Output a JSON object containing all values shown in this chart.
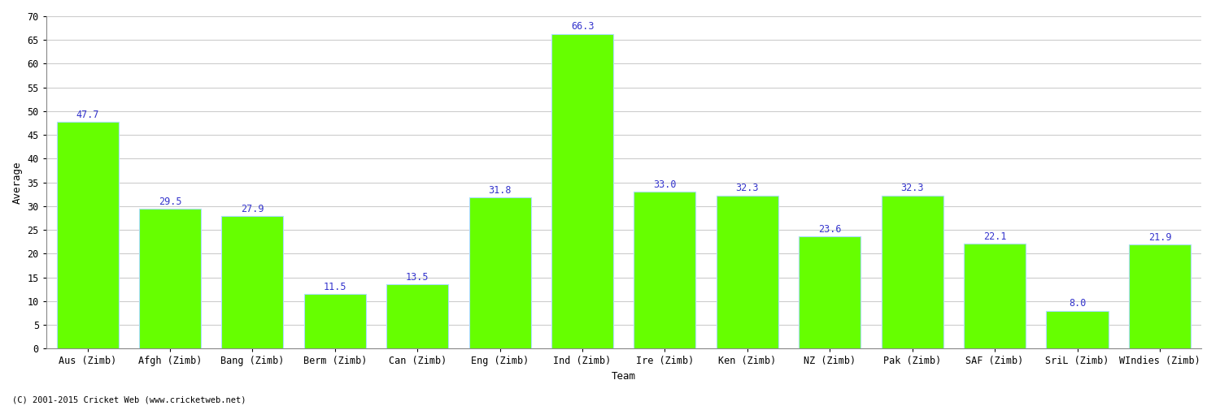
{
  "categories": [
    "Aus (Zimb)",
    "Afgh (Zimb)",
    "Bang (Zimb)",
    "Berm (Zimb)",
    "Can (Zimb)",
    "Eng (Zimb)",
    "Ind (Zimb)",
    "Ire (Zimb)",
    "Ken (Zimb)",
    "NZ (Zimb)",
    "Pak (Zimb)",
    "SAF (Zimb)",
    "SriL (Zimb)",
    "WIndies (Zimb)"
  ],
  "values": [
    47.7,
    29.5,
    27.9,
    11.5,
    13.5,
    31.8,
    66.3,
    33.0,
    32.3,
    23.6,
    32.3,
    22.1,
    8.0,
    21.9
  ],
  "bar_color": "#66ff00",
  "bar_edge_color": "#aaddff",
  "label_color": "#3333cc",
  "ylabel": "Average",
  "xlabel": "Team",
  "ylim": [
    0,
    70
  ],
  "yticks": [
    0,
    5,
    10,
    15,
    20,
    25,
    30,
    35,
    40,
    45,
    50,
    55,
    60,
    65,
    70
  ],
  "background_color": "#ffffff",
  "grid_color": "#cccccc",
  "footer": "(C) 2001-2015 Cricket Web (www.cricketweb.net)",
  "label_fontsize": 8.5,
  "axis_label_fontsize": 9,
  "tick_fontsize": 8.5,
  "title_fontsize": 11,
  "bar_width": 0.75
}
